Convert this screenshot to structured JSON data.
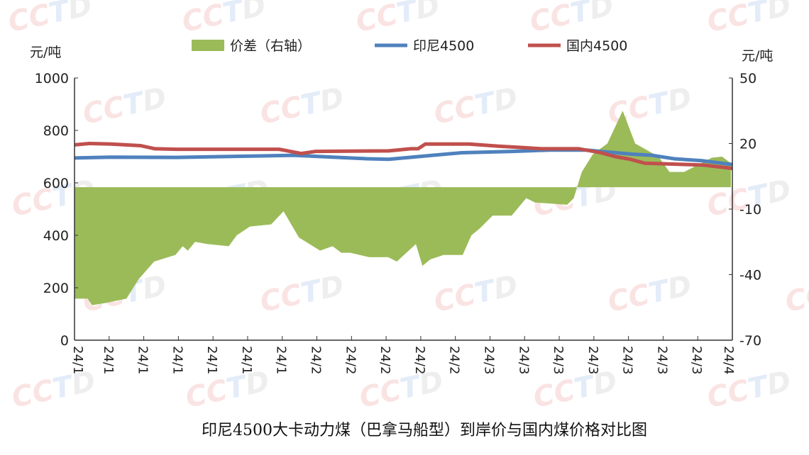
{
  "chart_data": {
    "type": "line+area",
    "title": "印尼4500大卡动力煤（巴拿马船型）到岸价与国内煤价格对比图",
    "ylabel_left": "元/吨",
    "ylabel_right": "元/吨",
    "ylim_left": [
      0,
      1000
    ],
    "ylim_right": [
      -70,
      50
    ],
    "yticks_left": [
      0,
      200,
      400,
      600,
      800,
      1000
    ],
    "yticks_right": [
      -70,
      -40,
      -10,
      20,
      50
    ],
    "xlim_days": [
      0,
      90
    ],
    "xtick_labels": [
      "24/1",
      "24/1",
      "24/1",
      "24/1",
      "24/1",
      "24/1",
      "24/1",
      "24/2",
      "24/2",
      "24/2",
      "24/2",
      "24/2",
      "24/3",
      "24/3",
      "24/3",
      "24/3",
      "24/3",
      "24/3",
      "24/3",
      "24/4"
    ],
    "legend_position": "top",
    "colors": {
      "diff": "#9bbb59",
      "indo": "#4f81bd",
      "dom": "#c0504d"
    },
    "series": [
      {
        "name": "价差（右轴）",
        "axis": "right",
        "kind": "area",
        "points": [
          [
            0,
            -51
          ],
          [
            1.8,
            -51
          ],
          [
            2.4,
            -54
          ],
          [
            4.2,
            -53
          ],
          [
            7.1,
            -51
          ],
          [
            8.8,
            -42
          ],
          [
            10.9,
            -34
          ],
          [
            13.8,
            -31
          ],
          [
            14.8,
            -27
          ],
          [
            15.5,
            -29
          ],
          [
            16.5,
            -25
          ],
          [
            18.2,
            -26
          ],
          [
            21.1,
            -27
          ],
          [
            22.2,
            -22
          ],
          [
            24,
            -18
          ],
          [
            26.9,
            -17
          ],
          [
            28.6,
            -11
          ],
          [
            30.7,
            -23
          ],
          [
            33.6,
            -29
          ],
          [
            35.3,
            -27
          ],
          [
            36.5,
            -30
          ],
          [
            37.7,
            -30
          ],
          [
            40.3,
            -32
          ],
          [
            42.9,
            -32
          ],
          [
            44.1,
            -34
          ],
          [
            46.7,
            -26
          ],
          [
            47.6,
            -36
          ],
          [
            48.7,
            -33
          ],
          [
            50.5,
            -31
          ],
          [
            53.1,
            -31
          ],
          [
            54.3,
            -22
          ],
          [
            55.4,
            -19
          ],
          [
            57.2,
            -13
          ],
          [
            59.8,
            -13
          ],
          [
            61.8,
            -5
          ],
          [
            63,
            -7
          ],
          [
            67.4,
            -8
          ],
          [
            68.3,
            -5
          ],
          [
            68.8,
            0.5
          ],
          [
            69.4,
            7
          ],
          [
            70.9,
            15
          ],
          [
            72.9,
            20
          ],
          [
            75,
            35
          ],
          [
            76.7,
            20
          ],
          [
            79.9,
            14
          ],
          [
            81.4,
            7
          ],
          [
            83.4,
            7
          ],
          [
            87.2,
            13.5
          ],
          [
            88.6,
            14
          ],
          [
            89.8,
            11
          ]
        ]
      },
      {
        "name": "印尼4500",
        "axis": "left",
        "kind": "line",
        "points": [
          [
            0,
            695
          ],
          [
            5,
            698
          ],
          [
            14,
            697
          ],
          [
            20,
            700
          ],
          [
            30,
            705
          ],
          [
            40,
            692
          ],
          [
            43,
            690
          ],
          [
            47,
            700
          ],
          [
            53,
            715
          ],
          [
            60,
            720
          ],
          [
            65,
            725
          ],
          [
            70,
            725
          ],
          [
            72,
            720
          ],
          [
            76,
            710
          ],
          [
            79,
            705
          ],
          [
            82,
            692
          ],
          [
            86,
            684
          ],
          [
            90,
            670
          ]
        ]
      },
      {
        "name": "国内4500",
        "axis": "left",
        "kind": "line",
        "points": [
          [
            0,
            745
          ],
          [
            2,
            750
          ],
          [
            5,
            748
          ],
          [
            9,
            742
          ],
          [
            11,
            730
          ],
          [
            14,
            728
          ],
          [
            28,
            728
          ],
          [
            31,
            712
          ],
          [
            33,
            720
          ],
          [
            43,
            722
          ],
          [
            46,
            730
          ],
          [
            47,
            730
          ],
          [
            48,
            748
          ],
          [
            54,
            748
          ],
          [
            58,
            740
          ],
          [
            61,
            735
          ],
          [
            64,
            730
          ],
          [
            69,
            730
          ],
          [
            72,
            715
          ],
          [
            74,
            700
          ],
          [
            76,
            690
          ],
          [
            78,
            675
          ],
          [
            86,
            668
          ],
          [
            90,
            655
          ]
        ]
      }
    ]
  },
  "watermark": "CCTD"
}
